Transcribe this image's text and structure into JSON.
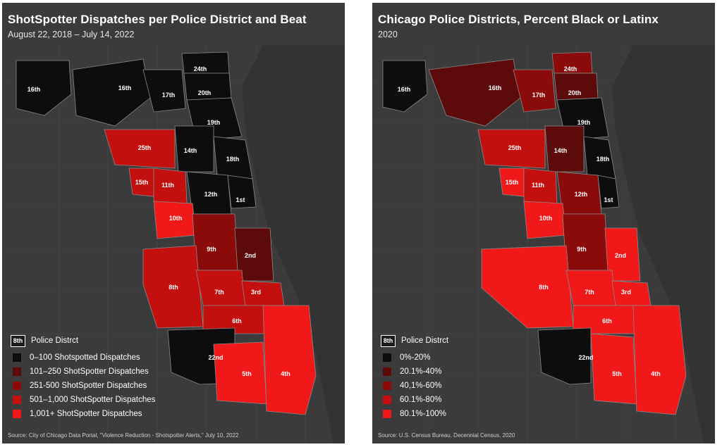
{
  "panels": [
    {
      "title": "ShotSpotter Dispatches per Police District and Beat",
      "subtitle": "August 22, 2018 – July 14, 2022",
      "legend": {
        "badge": "8th",
        "district_label": "Police Distrct",
        "items": [
          {
            "label": "0–100 Shotspotted Dispatches",
            "color": "#0d0d0d"
          },
          {
            "label": "101–250 ShotSpotter Dispatches",
            "color": "#5c0a0a"
          },
          {
            "label": "251-500 ShotSpotter Dispatches",
            "color": "#8b0a0a"
          },
          {
            "label": "501–1,000 ShotSpotter Dispatches",
            "color": "#c40f0f"
          },
          {
            "label": "1,001+ ShotSpotter Dispatches",
            "color": "#f01818"
          }
        ]
      },
      "source": "Source: City of Chicago Data Portal, \"Violence Reduction - Shotspotter Alerts,\" July 10, 2022",
      "districts": {
        "d16": "16th",
        "d16b": "16th",
        "d17": "17th",
        "d24": "24th",
        "d20": "20th",
        "d19": "19th",
        "d25": "25th",
        "d14": "14th",
        "d18": "18th",
        "d15": "15th",
        "d11": "11th",
        "d12": "12th",
        "d1": "1st",
        "d10": "10th",
        "d9": "9th",
        "d2": "2nd",
        "d8": "8th",
        "d7": "7th",
        "d3": "3rd",
        "d6": "6th",
        "d22": "22nd",
        "d5": "5th",
        "d4": "4th"
      }
    },
    {
      "title": "Chicago Police Districts, Percent Black or Latinx",
      "subtitle": "2020",
      "legend": {
        "badge": "8th",
        "district_label": "Police Distrct",
        "items": [
          {
            "label": "0%-20%",
            "color": "#0d0d0d"
          },
          {
            "label": "20.1%-40%",
            "color": "#5c0a0a"
          },
          {
            "label": "40,1%-60%",
            "color": "#8b0a0a"
          },
          {
            "label": "60.1%-80%",
            "color": "#c40f0f"
          },
          {
            "label": "80.1%-100%",
            "color": "#f01818"
          }
        ]
      },
      "source": "Source: U.S. Census Bureau, Decennial Census, 2020",
      "districts": {
        "d16": "16th",
        "d16b": "16th",
        "d17": "17th",
        "d24": "24th",
        "d20": "20th",
        "d19": "19th",
        "d25": "25th",
        "d14": "14th",
        "d18": "18th",
        "d15": "15th",
        "d11": "11th",
        "d12": "12th",
        "d1": "1st",
        "d10": "10th",
        "d9": "9th",
        "d2": "2nd",
        "d8": "8th",
        "d7": "7th",
        "d3": "3rd",
        "d6": "6th",
        "d22": "22nd",
        "d5": "5th",
        "d4": "4th"
      }
    }
  ]
}
